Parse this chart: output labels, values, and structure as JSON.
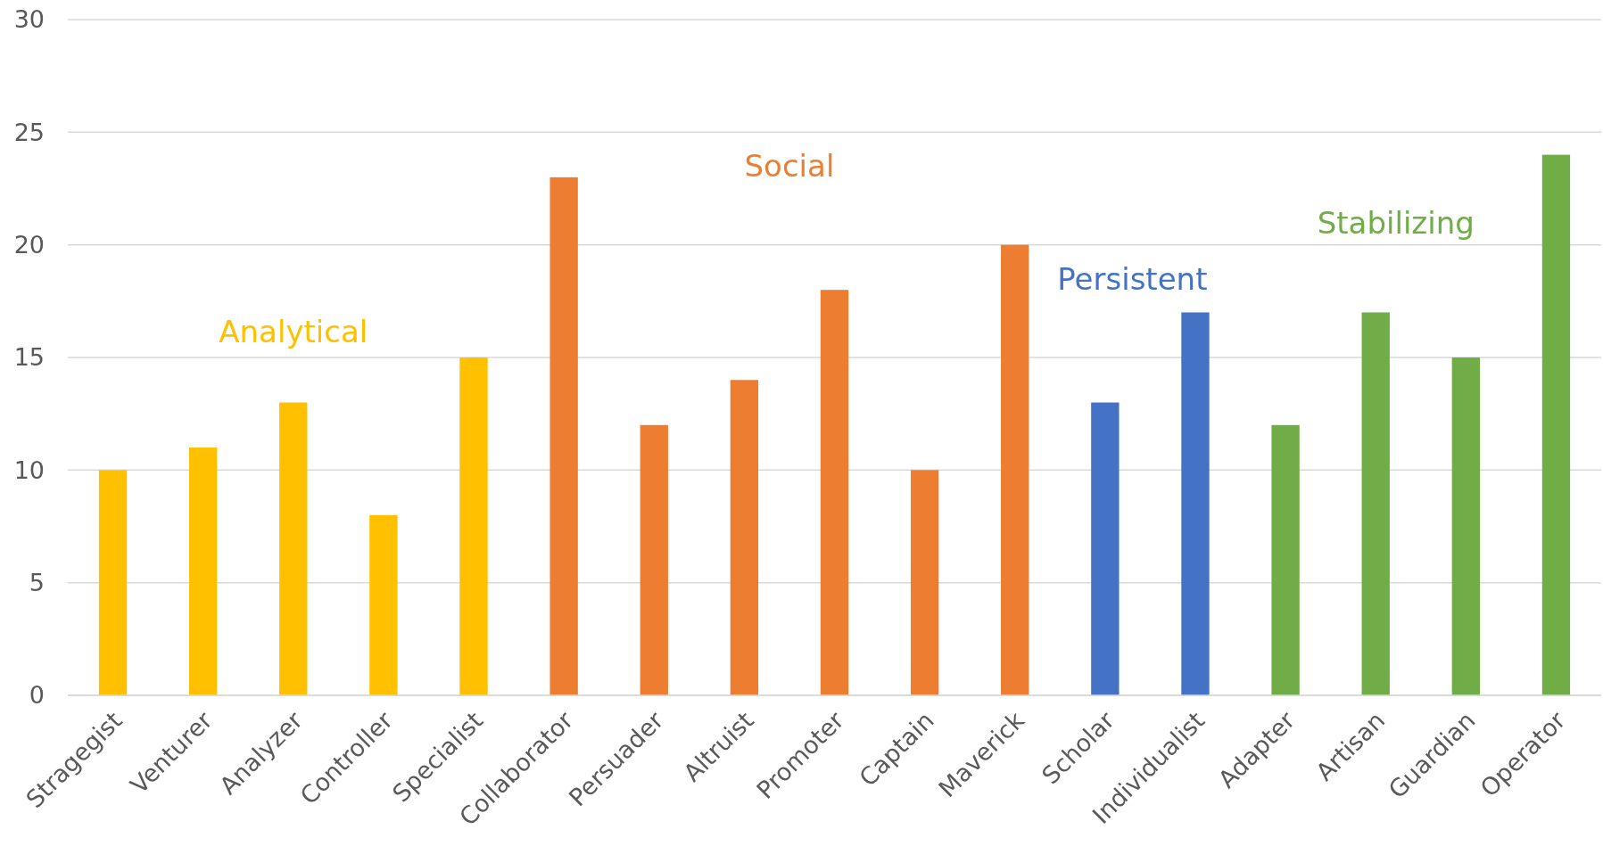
{
  "chart_data": {
    "type": "bar",
    "categories": [
      "Stragegist",
      "Venturer",
      "Analyzer",
      "Controller",
      "Specialist",
      "Collaborator",
      "Persuader",
      "Altruist",
      "Promoter",
      "Captain",
      "Maverick",
      "Scholar",
      "Individualist",
      "Adapter",
      "Artisan",
      "Guardian",
      "Operator"
    ],
    "values": [
      10,
      11,
      13,
      8,
      15,
      23,
      12,
      14,
      18,
      10,
      20,
      13,
      17,
      12,
      17,
      15,
      24
    ],
    "colors": [
      "#ffc000",
      "#ffc000",
      "#ffc000",
      "#ffc000",
      "#ffc000",
      "#ed7d31",
      "#ed7d31",
      "#ed7d31",
      "#ed7d31",
      "#ed7d31",
      "#ed7d31",
      "#4472c4",
      "#4472c4",
      "#70ad47",
      "#70ad47",
      "#70ad47",
      "#70ad47"
    ],
    "ylim": [
      0,
      30
    ],
    "yticks": [
      0,
      5,
      10,
      15,
      20,
      25,
      30
    ],
    "grid": "y",
    "annotations": [
      "Analytical",
      "Social",
      "Persistent",
      "Stabilizing"
    ]
  }
}
